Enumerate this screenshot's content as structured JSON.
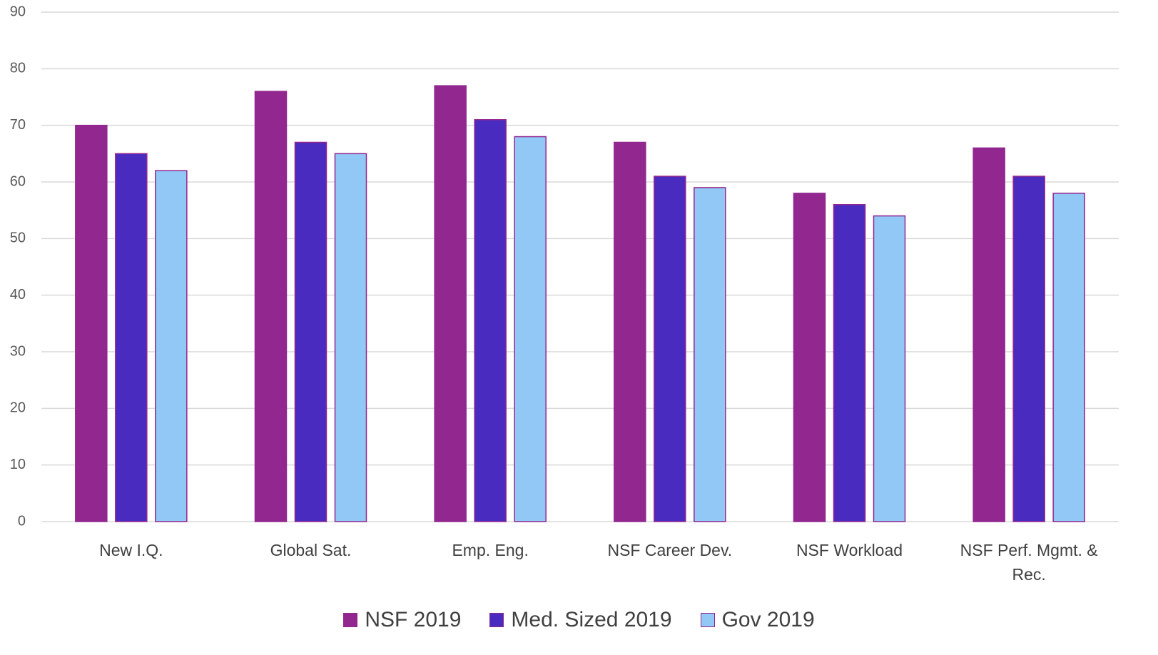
{
  "chart_data": {
    "type": "bar",
    "categories": [
      "New I.Q.",
      "Global Sat.",
      "Emp. Eng.",
      "NSF Career Dev.",
      "NSF Workload",
      "NSF Perf. Mgmt. & Rec."
    ],
    "series": [
      {
        "name": "NSF 2019",
        "color": "#92278f",
        "values": [
          70,
          76,
          77,
          67,
          58,
          66
        ]
      },
      {
        "name": "Med. Sized 2019",
        "color": "#4a2bbf",
        "values": [
          65,
          67,
          71,
          61,
          56,
          61
        ]
      },
      {
        "name": "Gov 2019",
        "color": "#92c8f5",
        "values": [
          62,
          65,
          68,
          59,
          54,
          58
        ]
      }
    ],
    "bar_outline": "#92278f",
    "ylim": [
      0,
      90
    ],
    "yticks": [
      0,
      10,
      20,
      30,
      40,
      50,
      60,
      70,
      80,
      90
    ],
    "grid": true,
    "legend": "bottom"
  }
}
